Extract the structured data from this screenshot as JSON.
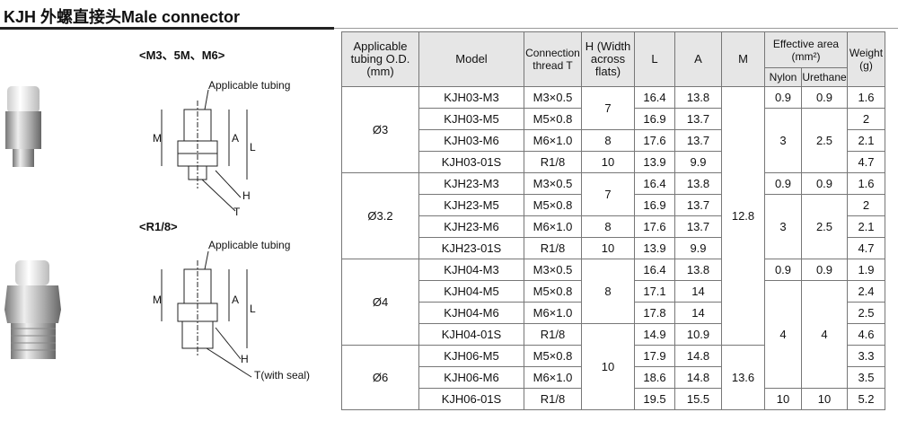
{
  "header": {
    "title": "KJH  外螺直接头Male connector"
  },
  "drawing": {
    "top_caption": "<M3、5M、M6>",
    "bottom_caption": "<R1/8>",
    "top_labels": {
      "tubing": "Applicable tubing",
      "m": "M",
      "a": "A",
      "l": "L",
      "h": "H",
      "t": "T"
    },
    "bottom_labels": {
      "tubing": "Applicable tubing",
      "m": "M",
      "a": "A",
      "l": "L",
      "h": "H",
      "t": "T(with seal)"
    }
  },
  "table": {
    "headers": {
      "tubing": "Applicable tubing O.D. (mm)",
      "model": "Model",
      "thread": "Connection thread T",
      "h": "H (Width across flats)",
      "l": "L",
      "a": "A",
      "m": "M",
      "area": "Effective area (mm²)",
      "weight": "Weight (g)",
      "nylon": "Nylon",
      "urethane": "Urethane"
    },
    "rows": [
      [
        "Ø3",
        "KJH03-M3",
        "M3×0.5",
        "7",
        "16.4",
        "13.8",
        "12.8",
        "0.9",
        "0.9",
        "1.6"
      ],
      [
        null,
        "KJH03-M5",
        "M5×0.8",
        null,
        "16.9",
        "13.7",
        null,
        "3",
        "2.5",
        "2"
      ],
      [
        null,
        "KJH03-M6",
        "M6×1.0",
        "8",
        "17.6",
        "13.7",
        null,
        null,
        null,
        "2.1"
      ],
      [
        null,
        "KJH03-01S",
        "R1/8",
        "10",
        "13.9",
        "9.9",
        null,
        null,
        null,
        "4.7"
      ],
      [
        "Ø3.2",
        "KJH23-M3",
        "M3×0.5",
        "7",
        "16.4",
        "13.8",
        null,
        "0.9",
        "0.9",
        "1.6"
      ],
      [
        null,
        "KJH23-M5",
        "M5×0.8",
        null,
        "16.9",
        "13.7",
        null,
        "3",
        "2.5",
        "2"
      ],
      [
        null,
        "KJH23-M6",
        "M6×1.0",
        "8",
        "17.6",
        "13.7",
        null,
        null,
        null,
        "2.1"
      ],
      [
        null,
        "KJH23-01S",
        "R1/8",
        "10",
        "13.9",
        "9.9",
        null,
        null,
        null,
        "4.7"
      ],
      [
        "Ø4",
        "KJH04-M3",
        "M3×0.5",
        "8",
        "16.4",
        "13.8",
        null,
        "0.9",
        "0.9",
        "1.9"
      ],
      [
        null,
        "KJH04-M5",
        "M5×0.8",
        null,
        "17.1",
        "14",
        null,
        "4",
        "4",
        "2.4"
      ],
      [
        null,
        "KJH04-M6",
        "M6×1.0",
        null,
        "17.8",
        "14",
        null,
        null,
        null,
        "2.5"
      ],
      [
        null,
        "KJH04-01S",
        "R1/8",
        "10",
        "14.9",
        "10.9",
        null,
        null,
        null,
        "4.6"
      ],
      [
        "Ø6",
        "KJH06-M5",
        "M5×0.8",
        null,
        "17.9",
        "14.8",
        "13.6",
        null,
        null,
        "3.3"
      ],
      [
        null,
        "KJH06-M6",
        "M6×1.0",
        null,
        "18.6",
        "14.8",
        null,
        null,
        null,
        "3.5"
      ],
      [
        null,
        "KJH06-01S",
        "R1/8",
        null,
        "19.5",
        "15.5",
        null,
        "10",
        "10",
        "5.2"
      ]
    ]
  }
}
